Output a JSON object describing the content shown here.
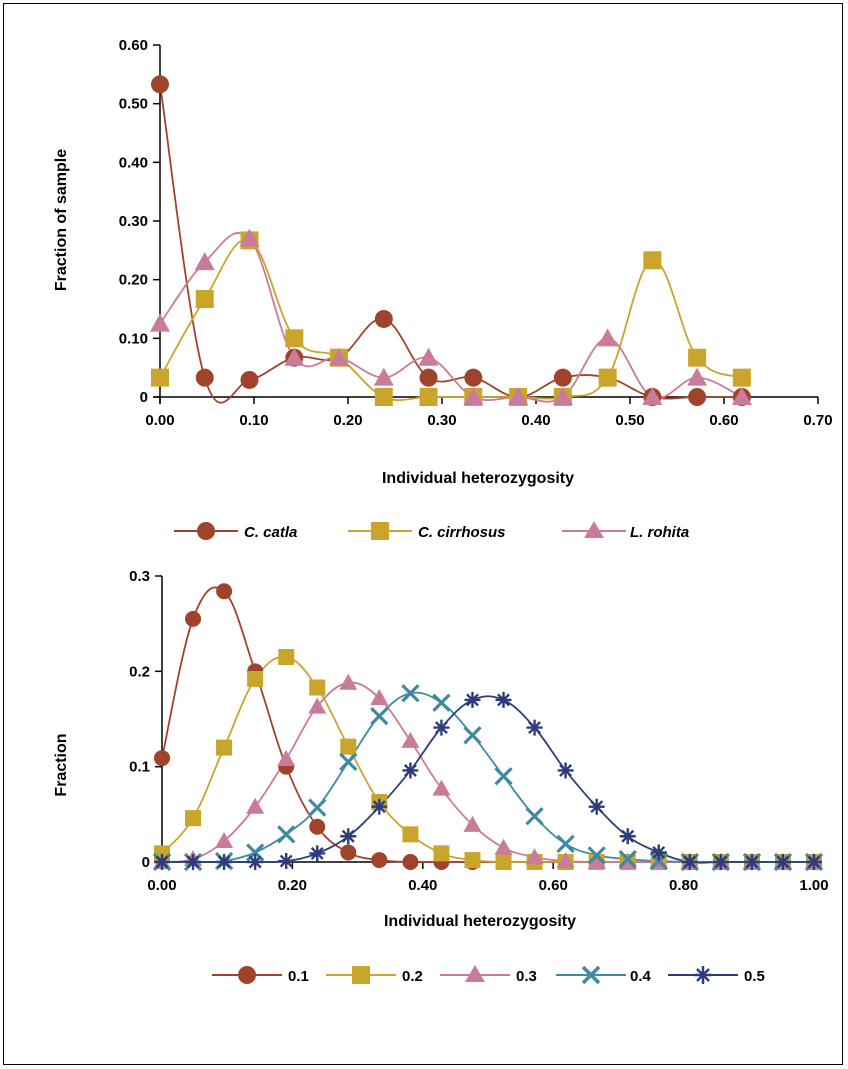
{
  "chart_data": [
    {
      "type": "line",
      "xlabel": "Individual heterozygosity",
      "ylabel": "Fraction of sample",
      "xlim": [
        0,
        0.7
      ],
      "ylim": [
        0,
        0.6
      ],
      "x_ticks": [
        "0.00",
        "0.10",
        "0.20",
        "0.30",
        "0.40",
        "0.50",
        "0.60",
        "0.70"
      ],
      "y_ticks": [
        "0",
        "0.10",
        "0.20",
        "0.30",
        "0.40",
        "0.50",
        "0.60"
      ],
      "legend_position": "bottom",
      "x": [
        0,
        0.0476,
        0.0952,
        0.1429,
        0.1905,
        0.2381,
        0.2857,
        0.3333,
        0.381,
        0.4286,
        0.4762,
        0.5238,
        0.5714,
        0.619
      ],
      "series": [
        {
          "name": "C. catla",
          "color": "#a0432b",
          "marker": "circle",
          "values": [
            0.533,
            0.033,
            0.029,
            0.067,
            0.067,
            0.133,
            0.033,
            0.033,
            0.0,
            0.033,
            0.033,
            0.0,
            0.0,
            0.0
          ]
        },
        {
          "name": "C. cirrhosus",
          "color": "#c9a52c",
          "marker": "square",
          "values": [
            0.033,
            0.167,
            0.267,
            0.1,
            0.067,
            0.0,
            0.0,
            0.0,
            0.0,
            0.0,
            0.033,
            0.233,
            0.067,
            0.033
          ]
        },
        {
          "name": "L. rohita",
          "color": "#c97b99",
          "marker": "triangle",
          "values": [
            0.125,
            0.23,
            0.27,
            0.067,
            0.067,
            0.033,
            0.067,
            0.0,
            0.0,
            0.0,
            0.1,
            0.0,
            0.033,
            0.0
          ]
        }
      ]
    },
    {
      "type": "line",
      "xlabel": "Individual heterozygosity",
      "ylabel": "Fraction",
      "xlim": [
        0,
        1.0
      ],
      "ylim": [
        0,
        0.3
      ],
      "x_ticks": [
        "0.00",
        "0.20",
        "0.40",
        "0.60",
        "0.80",
        "1.00"
      ],
      "y_ticks": [
        "0",
        "0.1",
        "0.2",
        "0.3"
      ],
      "legend_position": "bottom",
      "x": [
        0,
        0.0476,
        0.0952,
        0.1429,
        0.1905,
        0.2381,
        0.2857,
        0.3333,
        0.381,
        0.4286,
        0.4762,
        0.5238,
        0.5714,
        0.619,
        0.6667,
        0.7143,
        0.7619,
        0.8095,
        0.8571,
        0.9048,
        0.9524,
        1.0
      ],
      "series": [
        {
          "name": "0.1",
          "color": "#a0432b",
          "marker": "circle",
          "values": [
            0.109,
            0.255,
            0.284,
            0.2,
            0.1,
            0.037,
            0.01,
            0.002,
            0.0,
            0.0,
            0.0,
            0.0,
            0.0,
            0.0,
            0.0,
            0.0,
            0.0,
            0.0,
            0.0,
            0.0,
            0.0,
            0.0
          ]
        },
        {
          "name": "0.2",
          "color": "#c9a52c",
          "marker": "square",
          "values": [
            0.009,
            0.046,
            0.12,
            0.192,
            0.215,
            0.183,
            0.121,
            0.063,
            0.029,
            0.009,
            0.002,
            0.0,
            0.0,
            0.0,
            0.0,
            0.0,
            0.0,
            0.0,
            0.0,
            0.0,
            0.0,
            0.0
          ]
        },
        {
          "name": "0.3",
          "color": "#c97b99",
          "marker": "triangle",
          "values": [
            0.0,
            0.003,
            0.022,
            0.058,
            0.108,
            0.163,
            0.188,
            0.172,
            0.127,
            0.077,
            0.039,
            0.015,
            0.005,
            0.001,
            0.0,
            0.0,
            0.0,
            0.0,
            0.0,
            0.0,
            0.0,
            0.0
          ]
        },
        {
          "name": "0.4",
          "color": "#3e8aa0",
          "marker": "x",
          "values": [
            0.0,
            0.0,
            0.001,
            0.01,
            0.029,
            0.057,
            0.105,
            0.153,
            0.177,
            0.167,
            0.133,
            0.09,
            0.048,
            0.019,
            0.007,
            0.003,
            0.001,
            0.0,
            0.0,
            0.0,
            0.0,
            0.0
          ]
        },
        {
          "name": "0.5",
          "color": "#2d3c7c",
          "marker": "star",
          "values": [
            0.0,
            0.0,
            0.0,
            0.0,
            0.001,
            0.009,
            0.027,
            0.058,
            0.096,
            0.141,
            0.17,
            0.17,
            0.141,
            0.096,
            0.058,
            0.027,
            0.01,
            0.0,
            0.0,
            0.0,
            0.0,
            0.0
          ]
        }
      ]
    }
  ]
}
